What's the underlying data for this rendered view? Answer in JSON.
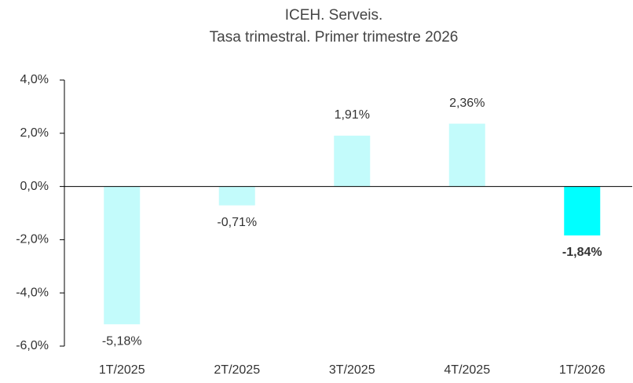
{
  "chart_data": {
    "type": "bar",
    "title": "ICEH. Serveis.",
    "subtitle": "Tasa trimestral. Primer trimestre 2026",
    "categories": [
      "1T/2025",
      "2T/2025",
      "3T/2025",
      "4T/2025",
      "1T/2026"
    ],
    "values": [
      -5.18,
      -0.71,
      1.91,
      2.36,
      -1.84
    ],
    "value_labels": [
      "-5,18%",
      "-0,71%",
      "1,91%",
      "2,36%",
      "-1,84%"
    ],
    "colors": [
      "#c3fbfb",
      "#c3fbfb",
      "#c3fbfb",
      "#c3fbfb",
      "#00ffff"
    ],
    "highlight_index": 4,
    "ylim": [
      -6,
      4
    ],
    "yticks": [
      {
        "value": -6,
        "label": "-6,0%"
      },
      {
        "value": -4,
        "label": "-4,0%"
      },
      {
        "value": -2,
        "label": "-2,0%"
      },
      {
        "value": 0,
        "label": "0,0%"
      },
      {
        "value": 2,
        "label": "2,0%"
      },
      {
        "value": 4,
        "label": "4,0%"
      }
    ],
    "grid": false
  }
}
